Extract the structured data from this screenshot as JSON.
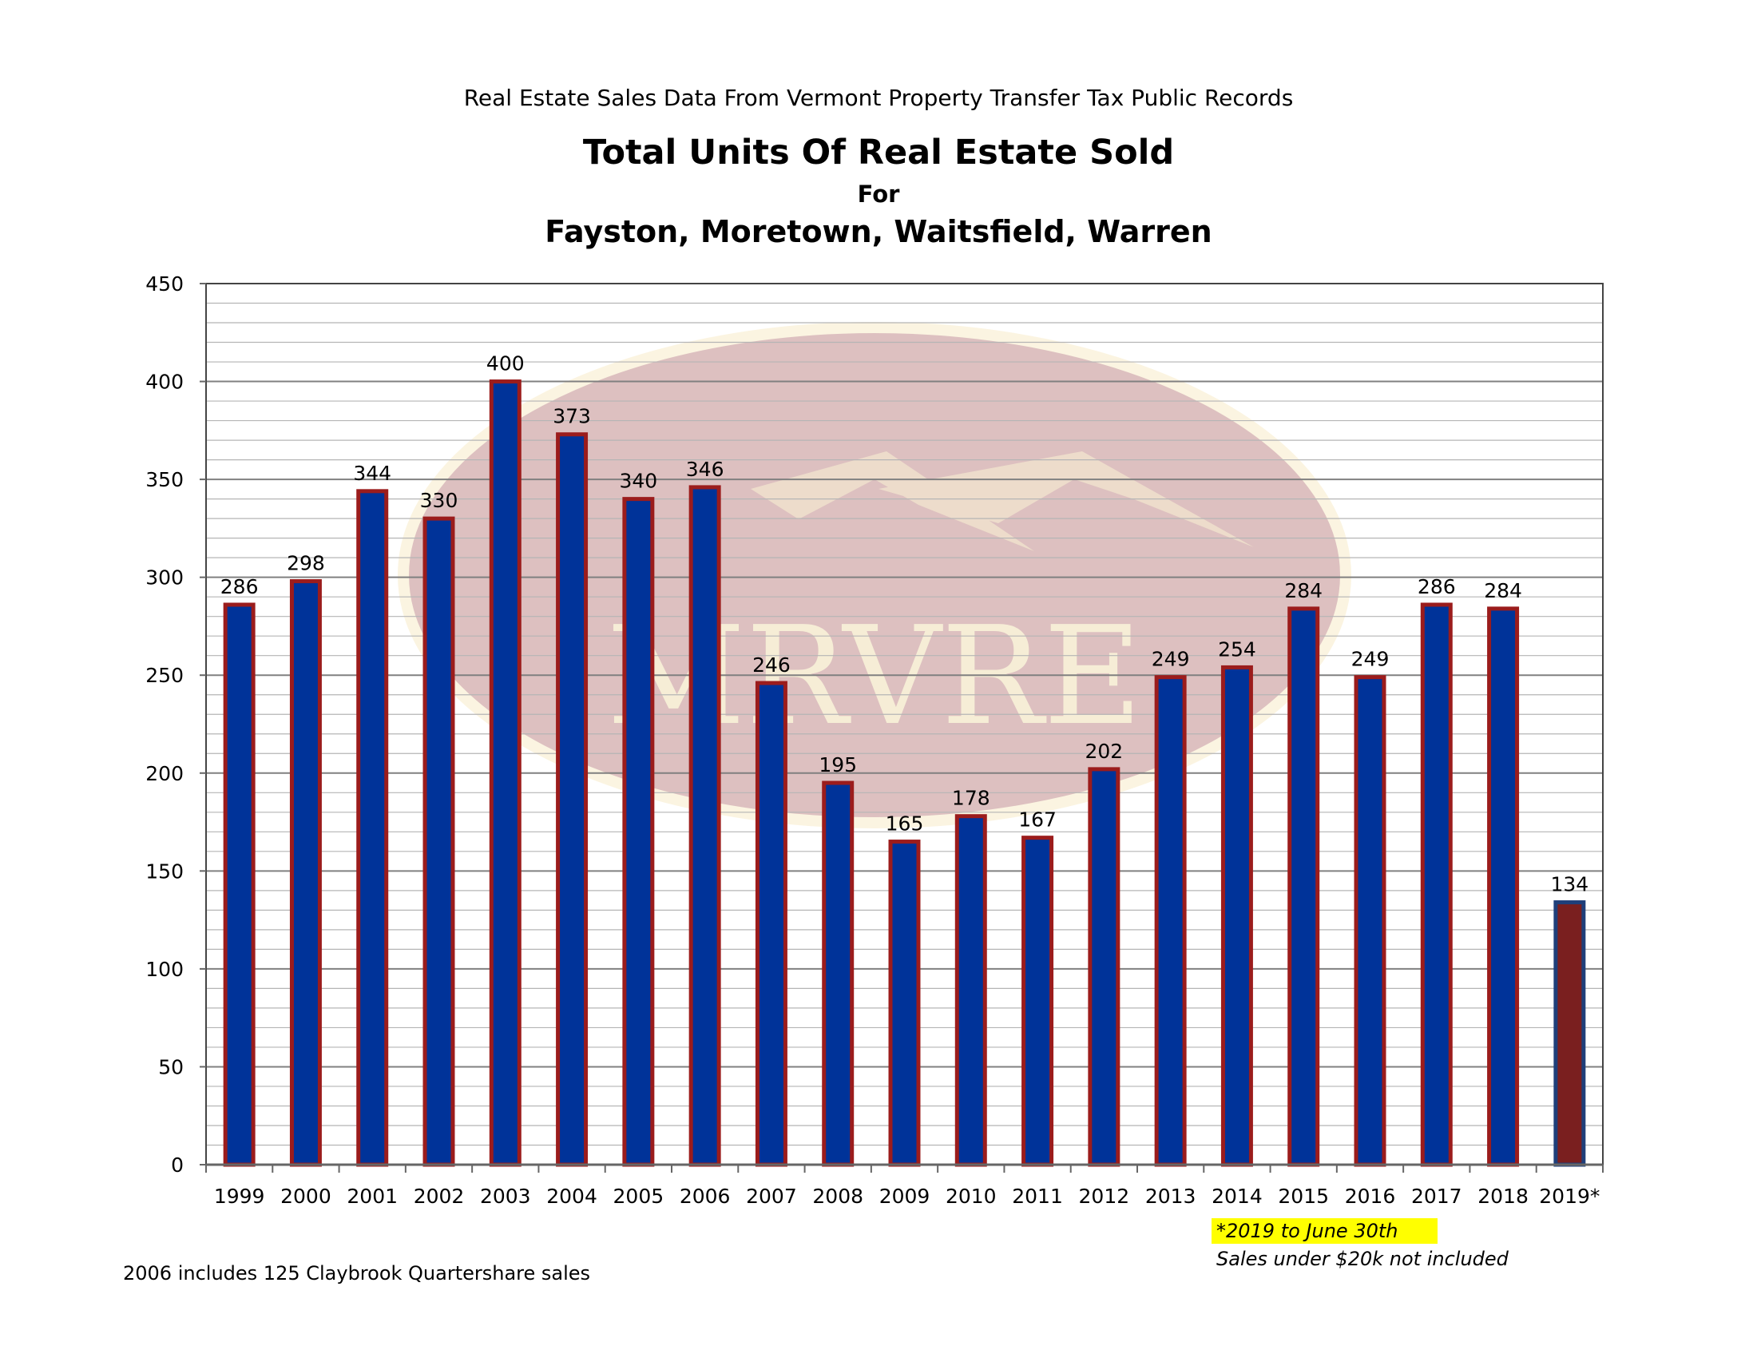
{
  "header": {
    "supertitle": "Real Estate Sales Data From Vermont Property Transfer Tax Public Records",
    "title": "Total Units Of Real Estate Sold",
    "for_line": "For",
    "subtitle": "Fayston, Moretown, Waitsfield, Warren"
  },
  "watermark": {
    "text": "MRVRE"
  },
  "notes": {
    "left": "2006 includes 125 Claybrook Quartershare sales",
    "highlight": "*2019 to June 30th",
    "exclusion": "Sales under $20k not included"
  },
  "colors": {
    "bar_fill": "#003399",
    "bar_border": "#9b1c1c",
    "partial_fill": "#7a1f1f",
    "partial_border": "#1f3f7a",
    "highlight": "#ffff00"
  },
  "chart_data": {
    "type": "bar",
    "title": "Total Units Of Real Estate Sold",
    "categories": [
      "1999",
      "2000",
      "2001",
      "2002",
      "2003",
      "2004",
      "2005",
      "2006",
      "2007",
      "2008",
      "2009",
      "2010",
      "2011",
      "2012",
      "2013",
      "2014",
      "2015",
      "2016",
      "2017",
      "2018",
      "2019*"
    ],
    "values": [
      286,
      298,
      344,
      330,
      400,
      373,
      340,
      346,
      246,
      195,
      165,
      178,
      167,
      202,
      249,
      254,
      284,
      249,
      286,
      284,
      134
    ],
    "ylim": [
      0,
      450
    ],
    "yticks": [
      0,
      50,
      100,
      150,
      200,
      250,
      300,
      350,
      400,
      450
    ],
    "minor_grid_step": 10,
    "grid": true,
    "data_labels": true,
    "partial_categories": [
      "2019*"
    ]
  }
}
